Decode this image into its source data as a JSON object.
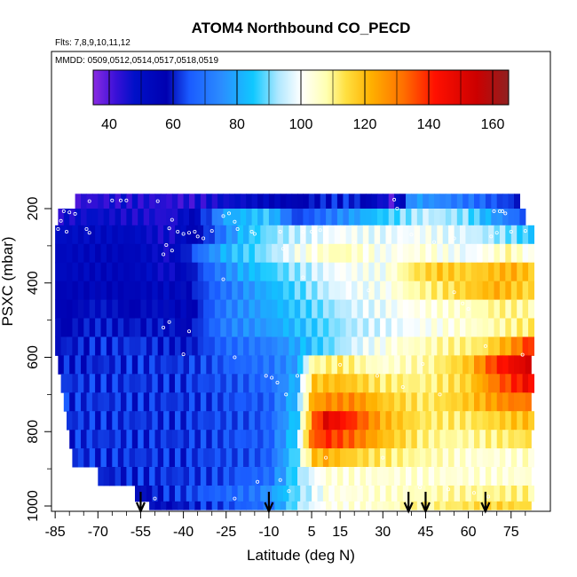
{
  "chart_data": {
    "type": "heatmap",
    "title": "ATOM4 Northbound CO_PECD",
    "subtitle_flights": "Flts: 7,8,9,10,11,12",
    "subtitle_dates": "MMDD: 0509,0512,0514,0517,0518,0519",
    "xlabel": "Latitude (deg N)",
    "ylabel": "PSXC (mbar)",
    "x_ticks": [
      "-85",
      "-70",
      "-55",
      "-40",
      "-25",
      "-10",
      "5",
      "15",
      "30",
      "45",
      "60",
      "75"
    ],
    "y_ticks": [
      "200",
      "400",
      "600",
      "800",
      "1000"
    ],
    "xlim": [
      -87,
      83
    ],
    "ylim": [
      1010,
      10
    ],
    "colorbar": {
      "ticks": [
        "40",
        "60",
        "80",
        "100",
        "120",
        "140",
        "160"
      ],
      "range": [
        35,
        165
      ]
    },
    "profile_arrows_lat": [
      -55,
      -10,
      39,
      45,
      66
    ],
    "levels": [
      {
        "p": 180,
        "lat_min": -78,
        "lat_max": 78,
        "lats": [
          -80,
          -60,
          -40,
          -20,
          0,
          20,
          34,
          40,
          60,
          78
        ],
        "vals": [
          42,
          45,
          43,
          48,
          58,
          62,
          40,
          78,
          70,
          60
        ]
      },
      {
        "p": 220,
        "lat_min": -84,
        "lat_max": 80,
        "lats": [
          -84,
          -65,
          -45,
          -35,
          -25,
          -10,
          0,
          10,
          25,
          45,
          60,
          75,
          80
        ],
        "vals": [
          46,
          48,
          44,
          55,
          80,
          85,
          62,
          70,
          82,
          95,
          90,
          70,
          65
        ]
      },
      {
        "p": 270,
        "lat_min": -85,
        "lat_max": 82,
        "lats": [
          -85,
          -60,
          -45,
          -30,
          -20,
          -10,
          0,
          15,
          30,
          45,
          60,
          75,
          82
        ],
        "vals": [
          50,
          52,
          46,
          64,
          82,
          90,
          95,
          100,
          98,
          100,
          96,
          90,
          85
        ]
      },
      {
        "p": 320,
        "lat_min": -85,
        "lat_max": 82,
        "lats": [
          -85,
          -60,
          -45,
          -35,
          -25,
          -15,
          0,
          15,
          30,
          45,
          60,
          75,
          82
        ],
        "vals": [
          52,
          54,
          48,
          68,
          82,
          88,
          100,
          108,
          100,
          104,
          98,
          108,
          100
        ]
      },
      {
        "p": 370,
        "lat_min": -85,
        "lat_max": 82,
        "lats": [
          -85,
          -60,
          -45,
          -35,
          -20,
          0,
          15,
          30,
          40,
          50,
          60,
          75,
          82
        ],
        "vals": [
          52,
          54,
          48,
          62,
          80,
          92,
          100,
          100,
          112,
          118,
          116,
          122,
          118
        ]
      },
      {
        "p": 420,
        "lat_min": -85,
        "lat_max": 82,
        "lats": [
          -85,
          -60,
          -45,
          -30,
          -15,
          0,
          15,
          30,
          40,
          50,
          62,
          70,
          82
        ],
        "vals": [
          55,
          55,
          52,
          66,
          78,
          88,
          98,
          100,
          108,
          112,
          118,
          122,
          115
        ]
      },
      {
        "p": 470,
        "lat_min": -85,
        "lat_max": 82,
        "lats": [
          -85,
          -55,
          -40,
          -25,
          -10,
          5,
          20,
          35,
          50,
          60,
          70,
          82
        ],
        "vals": [
          56,
          58,
          54,
          72,
          80,
          88,
          96,
          100,
          104,
          106,
          110,
          108
        ]
      },
      {
        "p": 520,
        "lat_min": -85,
        "lat_max": 82,
        "lats": [
          -85,
          -55,
          -40,
          -25,
          -10,
          5,
          20,
          35,
          50,
          65,
          82
        ],
        "vals": [
          58,
          60,
          56,
          72,
          78,
          86,
          94,
          98,
          102,
          106,
          112
        ]
      },
      {
        "p": 570,
        "lat_min": -85,
        "lat_max": 82,
        "lats": [
          -85,
          -55,
          -40,
          -25,
          -10,
          5,
          20,
          35,
          50,
          65,
          75,
          82
        ],
        "vals": [
          60,
          62,
          58,
          68,
          72,
          84,
          96,
          104,
          108,
          112,
          125,
          140
        ]
      },
      {
        "p": 620,
        "lat_min": -84,
        "lat_max": 82,
        "lats": [
          -84,
          -55,
          -40,
          -25,
          -10,
          0,
          5,
          15,
          30,
          45,
          60,
          70,
          80
        ],
        "vals": [
          60,
          62,
          62,
          66,
          70,
          78,
          108,
          112,
          104,
          108,
          118,
          140,
          152
        ]
      },
      {
        "p": 670,
        "lat_min": -83,
        "lat_max": 82,
        "lats": [
          -83,
          -55,
          -40,
          -25,
          -10,
          0,
          5,
          15,
          30,
          45,
          60,
          70,
          80
        ],
        "vals": [
          62,
          62,
          62,
          65,
          68,
          82,
          118,
          120,
          112,
          110,
          116,
          132,
          145
        ]
      },
      {
        "p": 720,
        "lat_min": -82,
        "lat_max": 82,
        "lats": [
          -82,
          -55,
          -40,
          -25,
          -10,
          0,
          5,
          10,
          20,
          30,
          45,
          60,
          75,
          82
        ],
        "vals": [
          62,
          62,
          62,
          64,
          66,
          84,
          122,
          128,
          128,
          118,
          112,
          118,
          130,
          130
        ]
      },
      {
        "p": 770,
        "lat_min": -81,
        "lat_max": 82,
        "lats": [
          -81,
          -55,
          -40,
          -25,
          -10,
          0,
          5,
          10,
          20,
          30,
          45,
          60,
          75,
          82
        ],
        "vals": [
          62,
          62,
          62,
          64,
          66,
          86,
          128,
          150,
          138,
          122,
          112,
          112,
          118,
          120
        ]
      },
      {
        "p": 820,
        "lat_min": -80,
        "lat_max": 82,
        "lats": [
          -80,
          -55,
          -40,
          -25,
          -10,
          0,
          5,
          10,
          20,
          30,
          45,
          60,
          75,
          82
        ],
        "vals": [
          62,
          62,
          62,
          64,
          66,
          88,
          132,
          140,
          132,
          120,
          110,
          108,
          112,
          114
        ]
      },
      {
        "p": 870,
        "lat_min": -79,
        "lat_max": 82,
        "lats": [
          -79,
          -55,
          -40,
          -25,
          -10,
          0,
          5,
          10,
          20,
          30,
          45,
          60,
          75,
          82
        ],
        "vals": [
          62,
          62,
          62,
          64,
          66,
          90,
          118,
          122,
          116,
          112,
          108,
          104,
          104,
          106
        ]
      },
      {
        "p": 920,
        "lat_min": -70,
        "lat_max": 82,
        "lats": [
          -70,
          -55,
          -40,
          -25,
          -10,
          0,
          10,
          25,
          40,
          55,
          70,
          82
        ],
        "vals": [
          60,
          62,
          62,
          64,
          68,
          90,
          104,
          104,
          104,
          104,
          104,
          104
        ]
      },
      {
        "p": 970,
        "lat_min": -57,
        "lat_max": 82,
        "lats": [
          -57,
          -45,
          -30,
          -15,
          0,
          10,
          25,
          40,
          55,
          70,
          82
        ],
        "vals": [
          58,
          62,
          66,
          70,
          90,
          102,
          104,
          106,
          108,
          110,
          110
        ]
      },
      {
        "p": 1005,
        "lat_min": -52,
        "lat_max": 82,
        "lats": [
          -52,
          -40,
          -25,
          -10,
          0,
          10,
          25,
          40,
          55,
          70,
          82
        ],
        "vals": [
          56,
          60,
          64,
          70,
          92,
          102,
          104,
          108,
          112,
          116,
          114
        ]
      }
    ],
    "sample_points": [
      {
        "lat": -65,
        "p": 178
      },
      {
        "lat": -62,
        "p": 178
      },
      {
        "lat": -60,
        "p": 178
      },
      {
        "lat": -73,
        "p": 180
      },
      {
        "lat": -49,
        "p": 180
      },
      {
        "lat": 34,
        "p": 176
      },
      {
        "lat": 35,
        "p": 200
      },
      {
        "lat": -82,
        "p": 207
      },
      {
        "lat": -80,
        "p": 210
      },
      {
        "lat": -78,
        "p": 214
      },
      {
        "lat": -83,
        "p": 233
      },
      {
        "lat": -81,
        "p": 262
      },
      {
        "lat": -84,
        "p": 255
      },
      {
        "lat": -74,
        "p": 255
      },
      {
        "lat": -73,
        "p": 265
      },
      {
        "lat": -44,
        "p": 230
      },
      {
        "lat": -45,
        "p": 253
      },
      {
        "lat": -42,
        "p": 262
      },
      {
        "lat": -38,
        "p": 265
      },
      {
        "lat": -35,
        "p": 275
      },
      {
        "lat": -33,
        "p": 280
      },
      {
        "lat": -30,
        "p": 260
      },
      {
        "lat": -26,
        "p": 220
      },
      {
        "lat": -24,
        "p": 213
      },
      {
        "lat": -22,
        "p": 235
      },
      {
        "lat": -21,
        "p": 255
      },
      {
        "lat": -16,
        "p": 262
      },
      {
        "lat": -15,
        "p": 268
      },
      {
        "lat": -5,
        "p": 308
      },
      {
        "lat": -46,
        "p": 298
      },
      {
        "lat": -47,
        "p": 323
      },
      {
        "lat": -44,
        "p": 313
      },
      {
        "lat": -40,
        "p": 268
      },
      {
        "lat": -36,
        "p": 262
      },
      {
        "lat": -6,
        "p": 262
      },
      {
        "lat": 2,
        "p": 262
      },
      {
        "lat": 5,
        "p": 262
      },
      {
        "lat": 8,
        "p": 258
      },
      {
        "lat": 20,
        "p": 290
      },
      {
        "lat": 24,
        "p": 333
      },
      {
        "lat": 36,
        "p": 280
      },
      {
        "lat": 40,
        "p": 270
      },
      {
        "lat": 48,
        "p": 290
      },
      {
        "lat": 55,
        "p": 280
      },
      {
        "lat": 69,
        "p": 207
      },
      {
        "lat": 71,
        "p": 207
      },
      {
        "lat": 72,
        "p": 207
      },
      {
        "lat": 73,
        "p": 213
      },
      {
        "lat": 70,
        "p": 265
      },
      {
        "lat": 68,
        "p": 275
      },
      {
        "lat": 75,
        "p": 262
      },
      {
        "lat": 80,
        "p": 260
      },
      {
        "lat": -26,
        "p": 390
      },
      {
        "lat": 2,
        "p": 385
      },
      {
        "lat": 25,
        "p": 420
      },
      {
        "lat": 55,
        "p": 425
      },
      {
        "lat": 58,
        "p": 455
      },
      {
        "lat": 60,
        "p": 470
      },
      {
        "lat": -45,
        "p": 505
      },
      {
        "lat": -47,
        "p": 520
      },
      {
        "lat": -38,
        "p": 530
      },
      {
        "lat": -22,
        "p": 600
      },
      {
        "lat": -40,
        "p": 592
      },
      {
        "lat": -11,
        "p": 650
      },
      {
        "lat": -9,
        "p": 655
      },
      {
        "lat": 0,
        "p": 650
      },
      {
        "lat": 15,
        "p": 620
      },
      {
        "lat": 44,
        "p": 618
      },
      {
        "lat": 28,
        "p": 650
      },
      {
        "lat": 37,
        "p": 680
      },
      {
        "lat": 66,
        "p": 570
      },
      {
        "lat": 79,
        "p": 593
      },
      {
        "lat": -7,
        "p": 668
      },
      {
        "lat": -4,
        "p": 700
      },
      {
        "lat": 50,
        "p": 700
      },
      {
        "lat": 10,
        "p": 870
      },
      {
        "lat": 30,
        "p": 870
      },
      {
        "lat": -6,
        "p": 930
      },
      {
        "lat": -14,
        "p": 935
      },
      {
        "lat": 43,
        "p": 950
      },
      {
        "lat": 53,
        "p": 955
      },
      {
        "lat": 62,
        "p": 965
      },
      {
        "lat": 67,
        "p": 975
      },
      {
        "lat": -3,
        "p": 960
      },
      {
        "lat": -50,
        "p": 980
      },
      {
        "lat": -22,
        "p": 980
      }
    ]
  }
}
